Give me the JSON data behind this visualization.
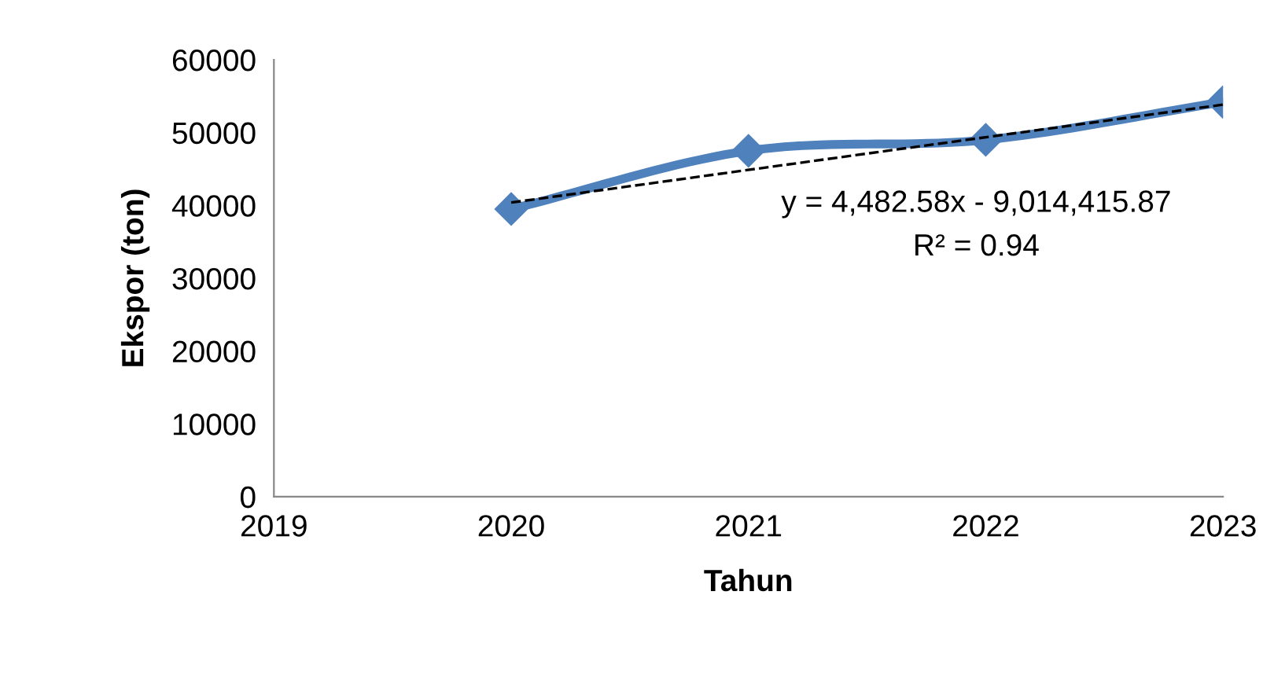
{
  "chart_data": {
    "type": "line",
    "xlabel": "Tahun",
    "ylabel": "Ekspor (ton)",
    "x": [
      2020,
      2021,
      2022,
      2023
    ],
    "series": [
      {
        "color": "#4f81bd",
        "values": [
          39500,
          47500,
          49000,
          54200
        ],
        "marker": "diamond",
        "line_style": "solid"
      },
      {
        "type": "line",
        "color": "#000000",
        "x": [
          2020,
          2023
        ],
        "values": [
          40396,
          53844
        ],
        "marker": "none",
        "line_style": "dashed"
      }
    ],
    "xlim": [
      2019,
      2023
    ],
    "xticks": [
      2019,
      2020,
      2021,
      2022,
      2023
    ],
    "ylim": [
      0,
      60000
    ],
    "yticks": [
      0,
      10000,
      20000,
      30000,
      40000,
      50000,
      60000
    ],
    "grid": false,
    "legend": false,
    "annotations": [
      "y = 4,482.58x - 9,014,415.87",
      "R² = 0.94"
    ]
  }
}
